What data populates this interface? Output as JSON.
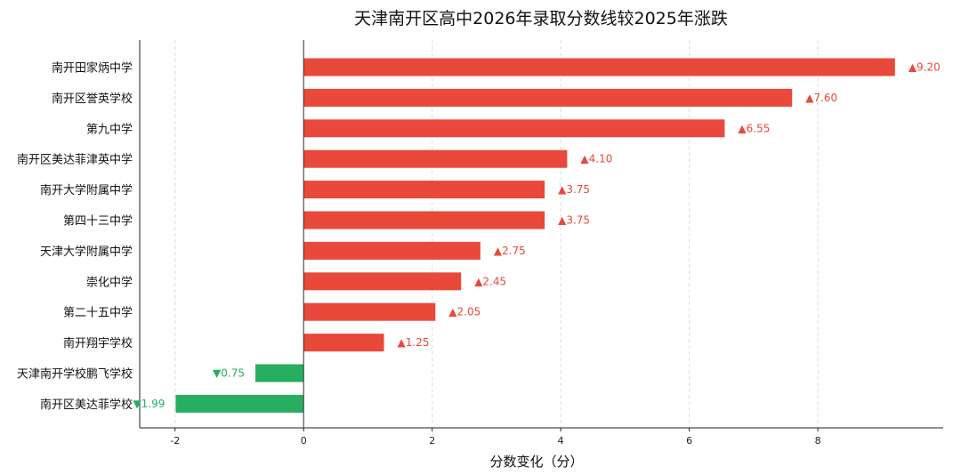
{
  "chart_data": {
    "type": "bar",
    "orientation": "horizontal",
    "title": "天津南开区高中2026年录取分数线较2025年涨跌",
    "xlabel": "分数变化（分）",
    "ylabel": "",
    "xlim": [
      -2.55,
      9.95
    ],
    "xticks": [
      "-2",
      "0",
      "2",
      "4",
      "6",
      "8"
    ],
    "grid": "vertical-dashed",
    "categories": [
      "南开田家炳中学",
      "南开区誉英学校",
      "第九中学",
      "南开区美达菲津英中学",
      "南开大学附属中学",
      "第四十三中学",
      "天津大学附属中学",
      "崇化中学",
      "第二十五中学",
      "南开翔宇学校",
      "天津南开学校鹏飞学校",
      "南开区美达菲学校"
    ],
    "values": [
      9.2,
      7.6,
      6.55,
      4.1,
      3.75,
      3.75,
      2.75,
      2.45,
      2.05,
      1.25,
      -0.75,
      -1.99
    ],
    "data_labels": [
      "▲9.20",
      "▲7.60",
      "▲6.55",
      "▲4.10",
      "▲3.75",
      "▲3.75",
      "▲2.75",
      "▲2.45",
      "▲2.05",
      "▲1.25",
      "▼0.75",
      "▼1.99"
    ],
    "colors": {
      "positive": "#e8493a",
      "negative": "#27ae60"
    }
  }
}
